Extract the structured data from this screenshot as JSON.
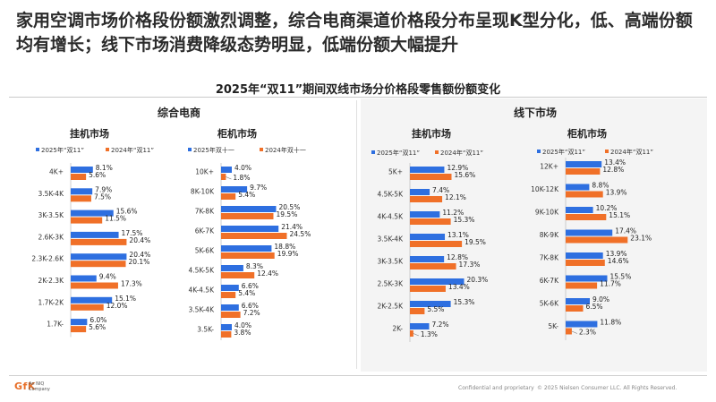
{
  "headline": "家用空调市场价格段份额激烈调整，综合电商渠道价格段分布呈现K型分化，低、高端份额均有增长；线下市场消费降级态势明显，低端份额大幅提升",
  "colors": {
    "series_2025": "#2e6fe0",
    "series_2024": "#f07028"
  },
  "sections": {
    "left": "综合电商",
    "right": "线下市场"
  },
  "chart_data": [
    {
      "type": "bar",
      "orientation": "horizontal",
      "section": "综合电商",
      "title": "挂机市场",
      "categories": [
        "4K+",
        "3.5K-4K",
        "3K-3.5K",
        "2.6K-3K",
        "2.3K-2.6K",
        "2K-2.3K",
        "1.7K-2K",
        "1.7K-"
      ],
      "series": [
        {
          "name": "2025年“双11”",
          "values": [
            8.1,
            7.9,
            15.6,
            17.5,
            20.4,
            9.4,
            15.1,
            6.0
          ]
        },
        {
          "name": "2024年“双11”",
          "values": [
            5.6,
            7.5,
            11.5,
            20.4,
            20.1,
            17.3,
            12.0,
            5.6
          ]
        }
      ],
      "unit": "%",
      "xlim": [
        0,
        25
      ]
    },
    {
      "type": "bar",
      "orientation": "horizontal",
      "section": "综合电商",
      "title": "柜机市场",
      "categories": [
        "10K+",
        "8K-10K",
        "7K-8K",
        "6K-7K",
        "5K-6K",
        "4.5K-5K",
        "4K-4.5K",
        "3.5K-4K",
        "3.5K-"
      ],
      "series": [
        {
          "name": "2025年双十一",
          "values": [
            4.0,
            9.7,
            20.5,
            21.4,
            18.8,
            8.3,
            6.6,
            6.6,
            4.0
          ]
        },
        {
          "name": "2024年双十一",
          "values": [
            1.8,
            5.4,
            19.5,
            24.5,
            19.9,
            12.4,
            5.4,
            7.2,
            3.8
          ]
        }
      ],
      "unit": "%",
      "xlim": [
        0,
        25
      ]
    },
    {
      "type": "bar",
      "orientation": "horizontal",
      "section": "线下市场",
      "title": "挂机市场",
      "categories": [
        "5K+",
        "4.5K-5K",
        "4K-4.5K",
        "3.5K-4K",
        "3K-3.5K",
        "2.5K-3K",
        "2K-2.5K",
        "2K-"
      ],
      "series": [
        {
          "name": "2025年“双11”",
          "values": [
            12.9,
            7.4,
            11.2,
            13.1,
            12.8,
            20.3,
            15.3,
            7.2
          ]
        },
        {
          "name": "2024年“双11”",
          "values": [
            15.6,
            12.1,
            15.3,
            19.5,
            17.3,
            13.4,
            5.5,
            1.3
          ]
        }
      ],
      "unit": "%",
      "xlim": [
        0,
        25
      ]
    },
    {
      "type": "bar",
      "orientation": "horizontal",
      "section": "线下市场",
      "title": "柜机市场",
      "categories": [
        "12K+",
        "10K-12K",
        "9K-10K",
        "8K-9K",
        "7K-8K",
        "6K-7K",
        "5K-6K",
        "5K-"
      ],
      "series": [
        {
          "name": "2025年“双11”",
          "values": [
            13.4,
            8.8,
            10.2,
            17.4,
            13.9,
            15.5,
            9.0,
            11.8
          ]
        },
        {
          "name": "2024年“双11”",
          "values": [
            12.8,
            13.9,
            15.1,
            23.1,
            14.6,
            11.7,
            6.5,
            2.3
          ]
        }
      ],
      "unit": "%",
      "xlim": [
        0,
        25
      ]
    }
  ],
  "main_title": "2025年“双11”期间双线市场分价格段零售额份额变化",
  "footer": {
    "logo": "GfK",
    "logo_sub_1": "An NIQ",
    "logo_sub_2": "Company",
    "confidential": "Confidential and proprietary",
    "copyright": "© 2025 Nielsen Consumer LLC. All Rights Reserved."
  }
}
